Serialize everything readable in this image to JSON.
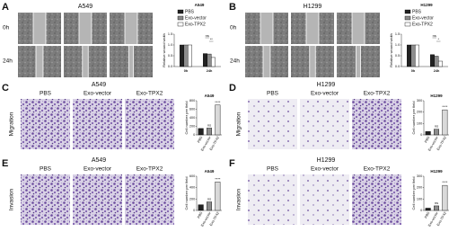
{
  "panels": [
    {
      "label": "A",
      "title": "A549",
      "columns": [
        "PBS",
        "Exo-vector",
        "Exo-TPX2"
      ],
      "rows": [
        "0h",
        "24h"
      ],
      "chart": {
        "type": "grouped_bar",
        "title": "A549",
        "y_label": "Relative wound width",
        "categories": [
          "0h",
          "24h"
        ],
        "series": [
          {
            "name": "PBS",
            "color": "#222222",
            "values": [
              1.0,
              0.6
            ]
          },
          {
            "name": "Exo-vector",
            "color": "#8c8c8c",
            "values": [
              1.0,
              0.58
            ]
          },
          {
            "name": "Exo-TPX2",
            "color": "#ffffff",
            "values": [
              1.0,
              0.42
            ]
          }
        ],
        "ylim": [
          0,
          1.5
        ],
        "yticks": [
          {
            "value": 0,
            "label": "0.0"
          },
          {
            "value": 0.5,
            "label": "0.5"
          },
          {
            "value": 1,
            "label": "1.0"
          },
          {
            "value": 1.5,
            "label": "1.5"
          }
        ],
        "annotations": [
          "ns",
          "**"
        ]
      }
    },
    {
      "label": "B",
      "title": "H1299",
      "columns": [
        "PBS",
        "Exo-vector",
        "Exo-TPX2"
      ],
      "rows": [
        "0h",
        "24h"
      ],
      "chart": {
        "type": "grouped_bar",
        "title": "H1299",
        "y_label": "Relative wound width",
        "categories": [
          "0h",
          "24h"
        ],
        "series": [
          {
            "name": "PBS",
            "color": "#222222",
            "values": [
              1.0,
              0.55
            ]
          },
          {
            "name": "Exo-vector",
            "color": "#8c8c8c",
            "values": [
              1.0,
              0.48
            ]
          },
          {
            "name": "Exo-TPX2",
            "color": "#ffffff",
            "values": [
              1.0,
              0.25
            ]
          }
        ],
        "ylim": [
          0,
          1.5
        ],
        "yticks": [
          {
            "value": 0,
            "label": "0.0"
          },
          {
            "value": 0.5,
            "label": "0.5"
          },
          {
            "value": 1,
            "label": "1.0"
          },
          {
            "value": 1.5,
            "label": "1.5"
          }
        ],
        "annotations": [
          "ns",
          "*"
        ]
      }
    },
    {
      "label": "C",
      "title": "A549",
      "side_label": "Migration",
      "columns": [
        "PBS",
        "Exo-vector",
        "Exo-TPX2"
      ],
      "chart": {
        "type": "bar",
        "title": "A549",
        "y_label": "Cell number per field",
        "categories": [
          "PBS",
          "Exo-vector",
          "Exo-TPX2"
        ],
        "values": [
          150,
          160,
          700
        ],
        "colors": [
          "#222222",
          "#8c8c8c",
          "#d9d9d9"
        ],
        "ylim": [
          0,
          800
        ],
        "yticks": [
          0,
          200,
          400,
          600,
          800
        ],
        "annotations": [
          "ns",
          "****"
        ]
      }
    },
    {
      "label": "D",
      "title": "H1299",
      "side_label": "Migration",
      "columns": [
        "PBS",
        "Exo-vector",
        "Exo-TPX2"
      ],
      "chart": {
        "type": "bar",
        "title": "H1299",
        "y_label": "Cell number per field",
        "categories": [
          "PBS",
          "Exo-vector",
          "Exo-TPX2"
        ],
        "values": [
          30,
          50,
          220
        ],
        "colors": [
          "#222222",
          "#8c8c8c",
          "#d9d9d9"
        ],
        "ylim": [
          0,
          300
        ],
        "yticks": [
          0,
          100,
          200,
          300
        ],
        "annotations": [
          "ns",
          "****"
        ]
      }
    },
    {
      "label": "E",
      "title": "A549",
      "side_label": "Invasion",
      "columns": [
        "PBS",
        "Exo-vector",
        "Exo-TPX2"
      ],
      "chart": {
        "type": "bar",
        "title": "A549",
        "y_label": "Cell number per field",
        "categories": [
          "PBS",
          "Exo-vector",
          "Exo-TPX2"
        ],
        "values": [
          100,
          150,
          500
        ],
        "colors": [
          "#222222",
          "#8c8c8c",
          "#d9d9d9"
        ],
        "ylim": [
          0,
          600
        ],
        "yticks": [
          0,
          200,
          400,
          600
        ],
        "annotations": [
          "ns",
          "****"
        ]
      }
    },
    {
      "label": "F",
      "title": "H1299",
      "side_label": "Invasion",
      "columns": [
        "PBS",
        "Exo-vector",
        "Exo-TPX2"
      ],
      "chart": {
        "type": "bar",
        "title": "H1299",
        "y_label": "Cell number per field",
        "categories": [
          "PBS",
          "Exo-vector",
          "Exo-TPX2"
        ],
        "values": [
          20,
          40,
          220
        ],
        "colors": [
          "#222222",
          "#8c8c8c",
          "#d9d9d9"
        ],
        "ylim": [
          0,
          300
        ],
        "yticks": [
          0,
          100,
          200,
          300
        ],
        "annotations": [
          "ns",
          "****"
        ]
      }
    }
  ]
}
